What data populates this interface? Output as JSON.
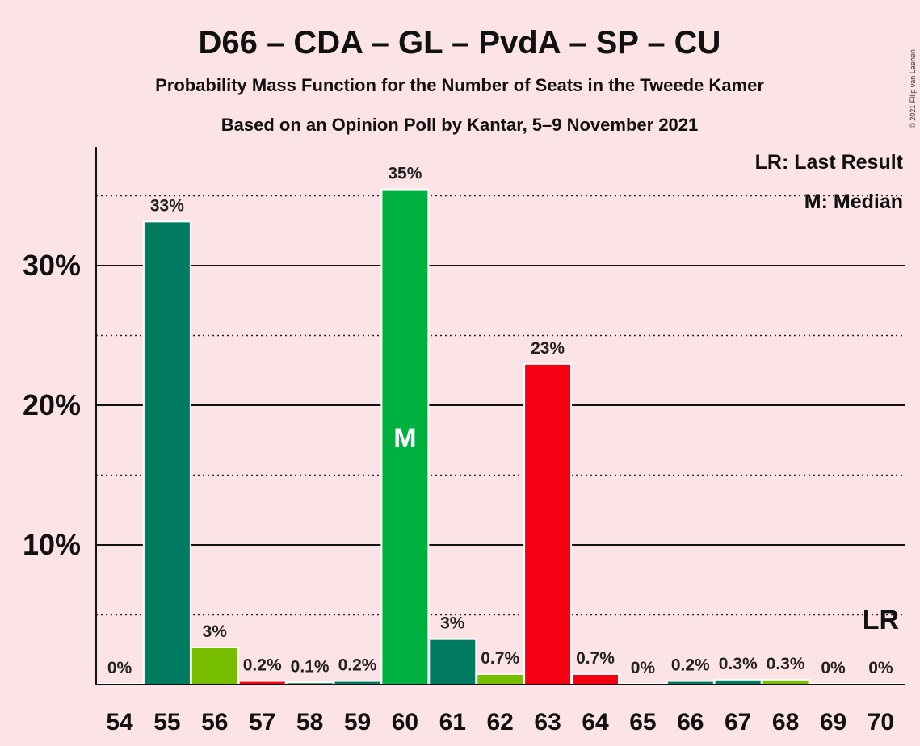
{
  "chart_data": {
    "type": "bar",
    "title": "D66 – CDA – GL – PvdA – SP – CU",
    "subtitle_1": "Probability Mass Function for the Number of Seats in the Tweede Kamer",
    "subtitle_2": "Based on an Opinion Poll by Kantar, 5–9 November 2021",
    "copyright": "© 2021 Filip van Laenen",
    "legend": {
      "placement": "top-right",
      "lr": "LR: Last Result",
      "median": "M: Median"
    },
    "categories": [
      "54",
      "55",
      "56",
      "57",
      "58",
      "59",
      "60",
      "61",
      "62",
      "63",
      "64",
      "65",
      "66",
      "67",
      "68",
      "69",
      "70"
    ],
    "values": [
      0,
      33.1,
      2.6,
      0.2,
      0.1,
      0.2,
      35.4,
      3.2,
      0.7,
      22.9,
      0.7,
      0,
      0.2,
      0.3,
      0.3,
      0,
      0
    ],
    "labels": [
      "0%",
      "33%",
      "3%",
      "0.2%",
      "0.1%",
      "0.2%",
      "35%",
      "3%",
      "0.7%",
      "23%",
      "0.7%",
      "0%",
      "0.2%",
      "0.3%",
      "0.3%",
      "0%",
      "0%"
    ],
    "colors": [
      "#007b5f",
      "#007b5f",
      "#77be00",
      "#f50012",
      "#007b5f",
      "#007b5f",
      "#00b140",
      "#007b5f",
      "#77be00",
      "#f50012",
      "#f50012",
      "#007b5f",
      "#007b5f",
      "#007b5f",
      "#77be00",
      "#007b5f",
      "#007b5f"
    ],
    "yticks": [
      {
        "value": 10,
        "label": "10%"
      },
      {
        "value": 20,
        "label": "20%"
      },
      {
        "value": 30,
        "label": "30%"
      }
    ],
    "ylim": [
      0,
      38
    ],
    "minor_gridlines": [
      5,
      15,
      25,
      35
    ],
    "median": {
      "category": "60",
      "marker": "M"
    },
    "last_result": {
      "category": "70",
      "marker": "LR"
    }
  }
}
